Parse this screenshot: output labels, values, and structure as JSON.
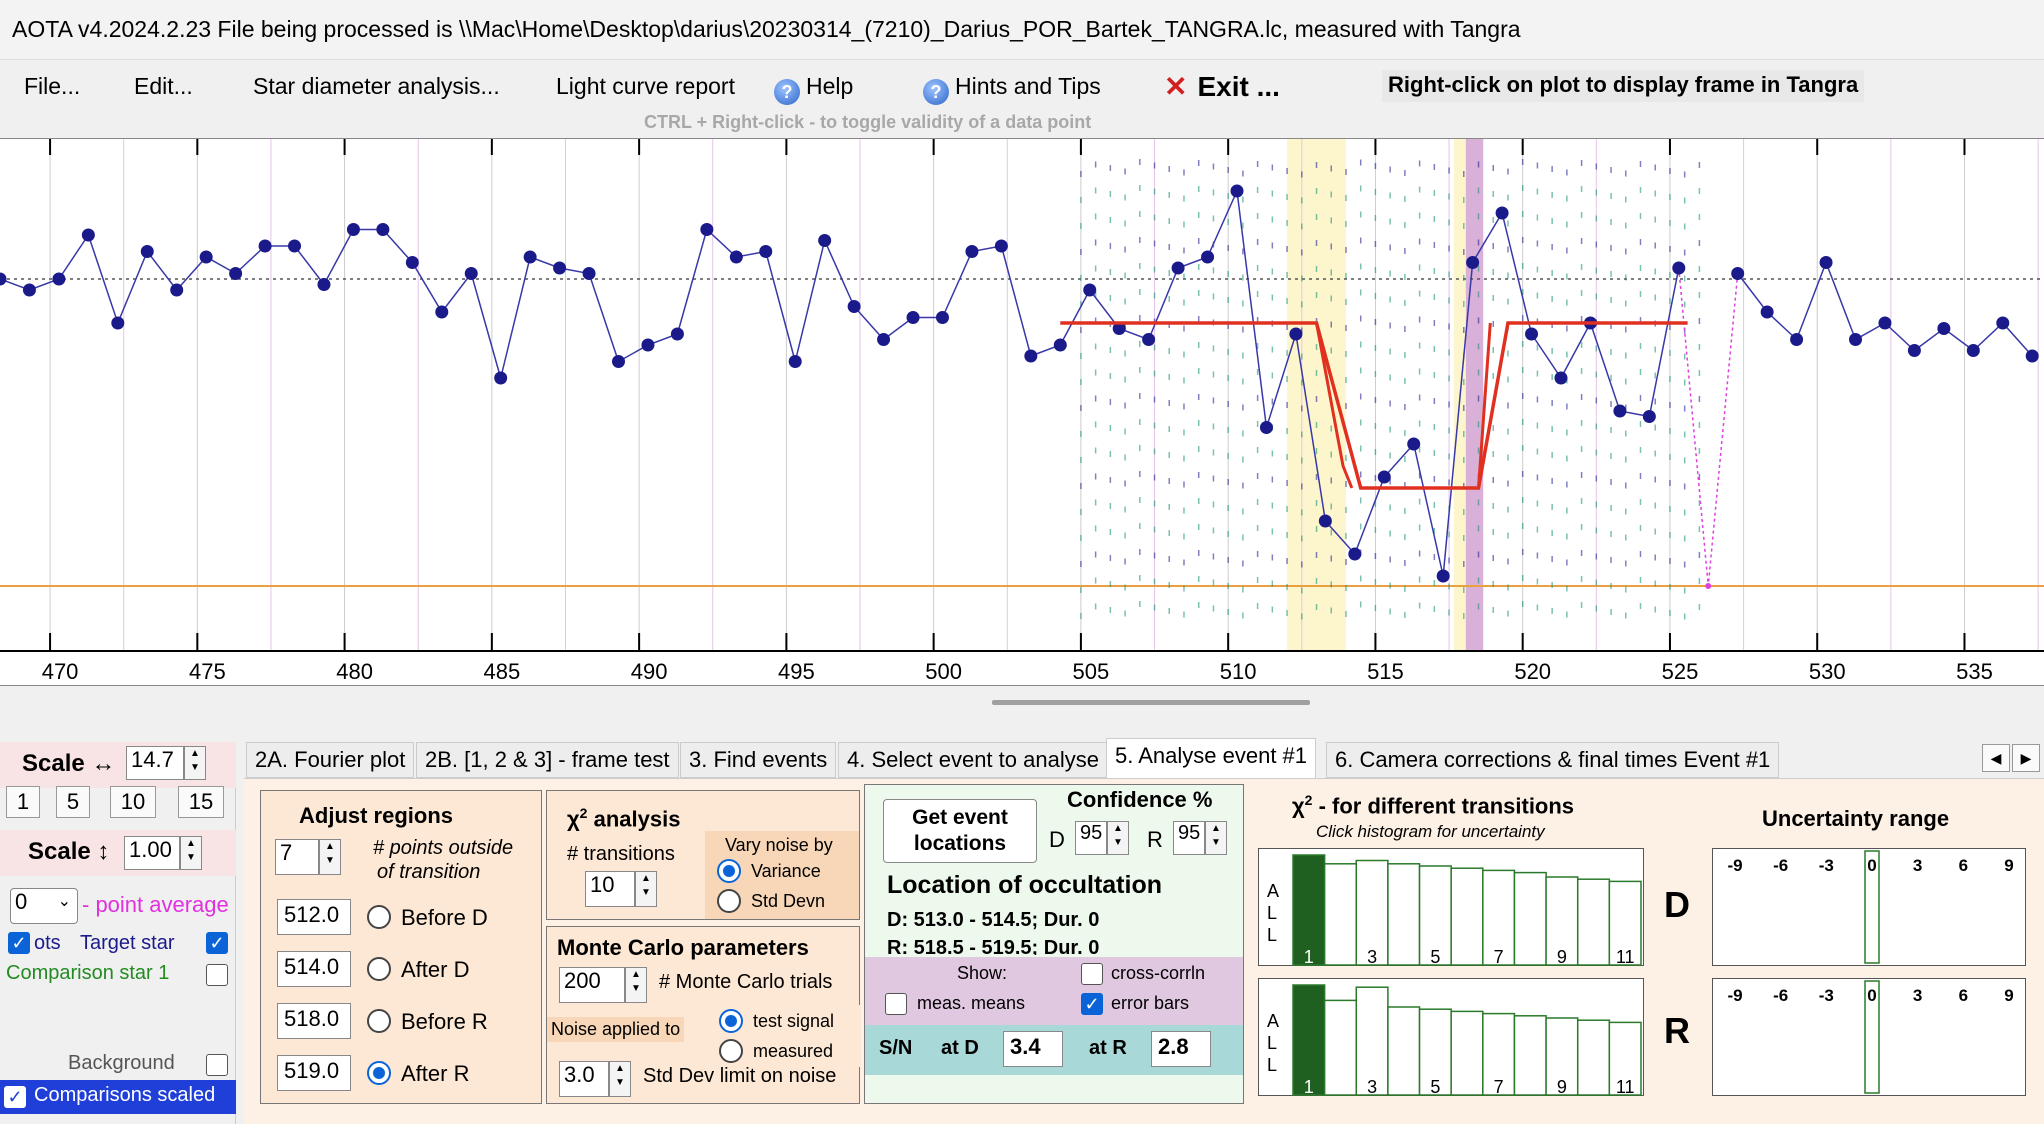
{
  "title": "AOTA v4.2024.2.23     File being processed is \\\\Mac\\Home\\Desktop\\darius\\20230314_(7210)_Darius_POR_Bartek_TANGRA.lc, measured with Tangra",
  "menu": {
    "file": "File...",
    "edit": "Edit...",
    "star_diameter": "Star diameter analysis...",
    "light_curve": "Light curve report",
    "help": "Help",
    "hints": "Hints and Tips",
    "exit": "Exit ...",
    "right_click_hint": "Right-click on plot to display frame in Tangra",
    "ctrl_hint": "CTRL + Right-click  -  to toggle validity of a data point"
  },
  "chart_data": {
    "type": "line",
    "x_ticks": [
      "470",
      "475",
      "480",
      "485",
      "490",
      "495",
      "500",
      "505",
      "510",
      "515",
      "520",
      "525",
      "530",
      "535"
    ],
    "x_range": [
      468.3,
      537.7
    ],
    "x": [
      468.3,
      469.3,
      470.3,
      471.3,
      472.3,
      473.3,
      474.3,
      475.3,
      476.3,
      477.3,
      478.3,
      479.3,
      480.3,
      481.3,
      482.3,
      483.3,
      484.3,
      485.3,
      486.3,
      487.3,
      488.3,
      489.3,
      490.3,
      491.3,
      492.3,
      493.3,
      494.3,
      495.3,
      496.3,
      497.3,
      498.3,
      499.3,
      500.3,
      501.3,
      502.3,
      503.3,
      504.3,
      505.3,
      506.3,
      507.3,
      508.3,
      509.3,
      510.3,
      511.3,
      512.3,
      513.3,
      514.3,
      515.3,
      516.3,
      517.3,
      518.3,
      519.3,
      520.3,
      521.3,
      522.3,
      523.3,
      524.3,
      525.3,
      526.3,
      527.3,
      528.3,
      529.3,
      530.3,
      531.3,
      532.3,
      533.3,
      534.3,
      535.3,
      536.3,
      537.3
    ],
    "y": [
      0.8,
      0.78,
      0.8,
      0.88,
      0.72,
      0.85,
      0.78,
      0.84,
      0.81,
      0.86,
      0.86,
      0.79,
      0.89,
      0.89,
      0.83,
      0.74,
      0.81,
      0.62,
      0.84,
      0.82,
      0.81,
      0.65,
      0.68,
      0.7,
      0.89,
      0.84,
      0.85,
      0.65,
      0.87,
      0.75,
      0.69,
      0.73,
      0.73,
      0.85,
      0.86,
      0.66,
      0.68,
      0.78,
      0.71,
      0.69,
      0.82,
      0.84,
      0.96,
      0.53,
      0.7,
      0.36,
      0.3,
      0.44,
      0.5,
      0.26,
      0.83,
      0.92,
      0.7,
      0.62,
      0.72,
      0.56,
      0.55,
      0.82,
      null,
      0.81,
      0.74,
      0.69,
      0.83,
      0.69,
      0.72,
      0.67,
      0.71,
      0.67,
      0.72,
      0.66
    ],
    "model": {
      "baseline": 0.72,
      "bottom": 0.42,
      "d_range": [
        513.0,
        514.5
      ],
      "r_range": [
        518.5,
        519.5
      ],
      "start": 504.3,
      "end": 525.6
    },
    "regions": {
      "d_band": [
        512.0,
        514.0
      ],
      "r_band": [
        518.0,
        519.0
      ]
    },
    "grid": true
  },
  "left_panel": {
    "scale_h_label": "Scale ↔",
    "scale_h_value": "14.7",
    "btns": [
      "1",
      "5",
      "10",
      "15"
    ],
    "scale_v_label": "Scale ↕",
    "scale_v_value": "1.00",
    "avg_value": "0",
    "avg_label": "- point average",
    "pts_label": "ots",
    "target_label": "Target star",
    "comp1_label": "Comparison star 1",
    "background_label": "Background",
    "comparisons_scaled": "Comparisons scaled"
  },
  "tabs": [
    "2A. Fourier plot",
    "2B. [1, 2 & 3] - frame test",
    "3. Find events",
    "4. Select event to analyse",
    "5. Analyse event #1",
    "6. Camera corrections & final times Event #1"
  ],
  "adjust": {
    "title": "Adjust regions",
    "points_value": "7",
    "points_label_1": "# points outside",
    "points_label_2": "of transition",
    "rows": [
      {
        "value": "512.0",
        "label": "Before D"
      },
      {
        "value": "514.0",
        "label": "After D"
      },
      {
        "value": "518.0",
        "label": "Before R"
      },
      {
        "value": "519.0",
        "label": "After R"
      }
    ]
  },
  "chi2": {
    "title": "analysis",
    "transitions_label": "# transitions",
    "transitions_value": "10",
    "vary_label": "Vary noise by",
    "variance": "Variance",
    "stddev": "Std Devn"
  },
  "monte_carlo": {
    "title": "Monte Carlo parameters",
    "trials_value": "200",
    "trials_label": "# Monte Carlo trials",
    "noise_applied": "Noise applied to",
    "test_signal": "test signal",
    "measured": "measured",
    "stdlimit_value": "3.0",
    "stdlimit_label": "Std Dev limit on noise"
  },
  "event": {
    "get_btn_1": "Get event",
    "get_btn_2": "locations",
    "confidence_label": "Confidence %",
    "d_label": "D",
    "d_value": "95",
    "r_label": "R",
    "r_value": "95",
    "location_title": "Location of occultation",
    "d_line": "D: 513.0 - 514.5; Dur. 0",
    "r_line": "R: 518.5 - 519.5; Dur. 0",
    "show_label": "Show:",
    "cross_corr": "cross-corrln",
    "meas_means": "meas. means",
    "error_bars": "error bars",
    "sn_label": "S/N",
    "at_d": "at D",
    "at_d_value": "3.4",
    "at_r": "at R",
    "at_r_value": "2.8"
  },
  "chi_hist": {
    "title": "- for different transitions",
    "subtitle": "Click histogram for uncertainty",
    "all_label": [
      "A",
      "L",
      "L"
    ],
    "ticks": [
      "1",
      "3",
      "5",
      "7",
      "9",
      "11"
    ],
    "d_bars": [
      1.0,
      0.92,
      0.95,
      0.92,
      0.9,
      0.88,
      0.86,
      0.84,
      0.8,
      0.78,
      0.76
    ],
    "r_bars": [
      1.0,
      0.86,
      0.98,
      0.8,
      0.78,
      0.76,
      0.74,
      0.72,
      0.7,
      0.68,
      0.66
    ],
    "d_letter": "D",
    "r_letter": "R"
  },
  "uncertainty": {
    "title": "Uncertainty range",
    "ticks": [
      "-9",
      "-6",
      "-3",
      "0",
      "3",
      "6",
      "9"
    ]
  },
  "colors": {
    "series": "#1a1a8a",
    "model": "#e03020",
    "d_band": "#fdf6cc",
    "r_band": "#d8b0d8",
    "baseline": "#e8a040"
  }
}
